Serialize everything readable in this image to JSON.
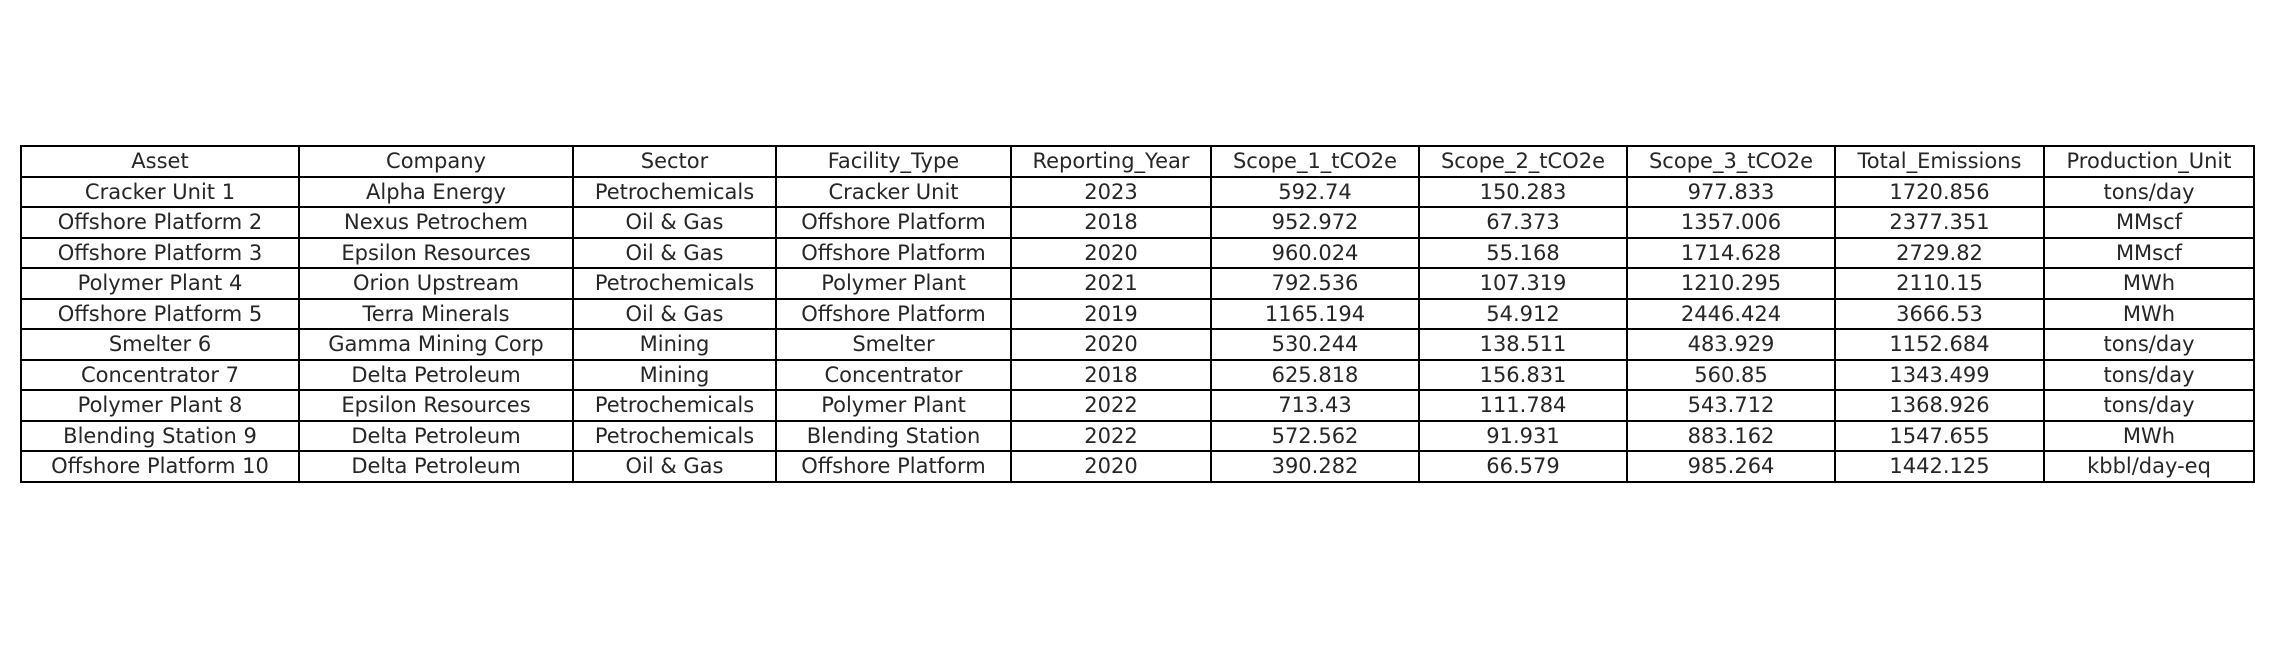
{
  "chart_data": {
    "type": "table",
    "columns": [
      "Asset",
      "Company",
      "Sector",
      "Facility_Type",
      "Reporting_Year",
      "Scope_1_tCO2e",
      "Scope_2_tCO2e",
      "Scope_3_tCO2e",
      "Total_Emissions",
      "Production_Unit"
    ],
    "rows": [
      [
        "Cracker Unit 1",
        "Alpha Energy",
        "Petrochemicals",
        "Cracker Unit",
        "2023",
        "592.74",
        "150.283",
        "977.833",
        "1720.856",
        "tons/day"
      ],
      [
        "Offshore Platform 2",
        "Nexus Petrochem",
        "Oil & Gas",
        "Offshore Platform",
        "2018",
        "952.972",
        "67.373",
        "1357.006",
        "2377.351",
        "MMscf"
      ],
      [
        "Offshore Platform 3",
        "Epsilon Resources",
        "Oil & Gas",
        "Offshore Platform",
        "2020",
        "960.024",
        "55.168",
        "1714.628",
        "2729.82",
        "MMscf"
      ],
      [
        "Polymer Plant 4",
        "Orion Upstream",
        "Petrochemicals",
        "Polymer Plant",
        "2021",
        "792.536",
        "107.319",
        "1210.295",
        "2110.15",
        "MWh"
      ],
      [
        "Offshore Platform 5",
        "Terra Minerals",
        "Oil & Gas",
        "Offshore Platform",
        "2019",
        "1165.194",
        "54.912",
        "2446.424",
        "3666.53",
        "MWh"
      ],
      [
        "Smelter 6",
        "Gamma Mining Corp",
        "Mining",
        "Smelter",
        "2020",
        "530.244",
        "138.511",
        "483.929",
        "1152.684",
        "tons/day"
      ],
      [
        "Concentrator 7",
        "Delta Petroleum",
        "Mining",
        "Concentrator",
        "2018",
        "625.818",
        "156.831",
        "560.85",
        "1343.499",
        "tons/day"
      ],
      [
        "Polymer Plant 8",
        "Epsilon Resources",
        "Petrochemicals",
        "Polymer Plant",
        "2022",
        "713.43",
        "111.784",
        "543.712",
        "1368.926",
        "tons/day"
      ],
      [
        "Blending Station 9",
        "Delta Petroleum",
        "Petrochemicals",
        "Blending Station",
        "2022",
        "572.562",
        "91.931",
        "883.162",
        "1547.655",
        "MWh"
      ],
      [
        "Offshore Platform 10",
        "Delta Petroleum",
        "Oil & Gas",
        "Offshore Platform",
        "2020",
        "390.282",
        "66.579",
        "985.264",
        "1442.125",
        "kbbl/day-eq"
      ]
    ]
  }
}
